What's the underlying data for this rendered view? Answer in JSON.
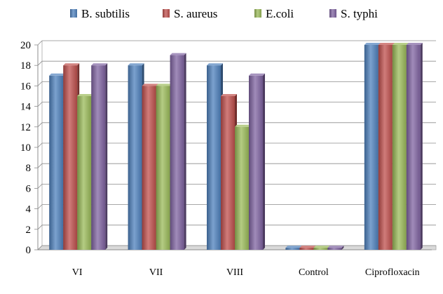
{
  "chart_data": {
    "type": "bar",
    "categories": [
      "VI",
      "VII",
      "VIII",
      "Control",
      "Ciprofloxacin"
    ],
    "series": [
      {
        "name": "B. subtilis",
        "color": "#4f81bd",
        "values": [
          17,
          18,
          18,
          0.2,
          20
        ]
      },
      {
        "name": "S. aureus",
        "color": "#c0504d",
        "values": [
          18,
          16,
          15,
          0.2,
          20
        ]
      },
      {
        "name": "E.coli",
        "color": "#9bbb59",
        "values": [
          15,
          16,
          12,
          0.2,
          20
        ]
      },
      {
        "name": "S. typhi",
        "color": "#8064a2",
        "values": [
          18,
          19,
          17,
          0.2,
          20
        ]
      }
    ],
    "ylim": [
      0,
      20
    ],
    "yticks": [
      0,
      2,
      4,
      6,
      8,
      10,
      12,
      14,
      16,
      18,
      20
    ],
    "grid": true,
    "legend_position": "top",
    "title": "",
    "xlabel": "",
    "ylabel": ""
  }
}
